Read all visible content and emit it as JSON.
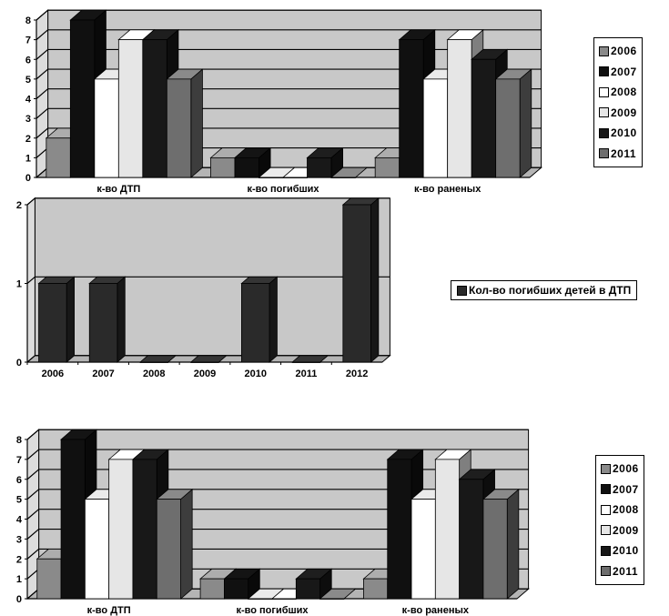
{
  "chart_data": [
    {
      "type": "bar",
      "categories": [
        "к-во ДТП",
        "к-во погибших",
        "к-во раненых"
      ],
      "series": [
        {
          "name": "2006",
          "values": [
            2,
            1,
            1
          ]
        },
        {
          "name": "2007",
          "values": [
            8,
            1,
            7
          ]
        },
        {
          "name": "2008",
          "values": [
            5,
            0,
            5
          ]
        },
        {
          "name": "2009",
          "values": [
            7,
            0,
            7
          ]
        },
        {
          "name": "2010",
          "values": [
            7,
            1,
            6
          ]
        },
        {
          "name": "2011",
          "values": [
            5,
            0,
            5
          ]
        }
      ],
      "ylim": [
        0,
        8
      ],
      "yticks": [
        "0",
        "1",
        "2",
        "3",
        "4",
        "5",
        "6",
        "7",
        "8"
      ],
      "grid": true,
      "legend": "right"
    },
    {
      "type": "bar",
      "categories": [
        "2006",
        "2007",
        "2008",
        "2009",
        "2010",
        "2011",
        "2012"
      ],
      "series": [
        {
          "name": "Кол-во погибших детей в ДТП",
          "values": [
            1,
            1,
            0,
            0,
            1,
            0,
            2
          ]
        }
      ],
      "ylim": [
        0,
        2
      ],
      "yticks": [
        "0",
        "1",
        "2"
      ],
      "grid": true,
      "legend": "right"
    },
    {
      "type": "bar",
      "categories": [
        "к-во ДТП",
        "к-во погибших",
        "к-во раненых"
      ],
      "series": [
        {
          "name": "2006",
          "values": [
            2,
            1,
            1
          ]
        },
        {
          "name": "2007",
          "values": [
            8,
            1,
            7
          ]
        },
        {
          "name": "2008",
          "values": [
            5,
            0,
            5
          ]
        },
        {
          "name": "2009",
          "values": [
            7,
            0,
            7
          ]
        },
        {
          "name": "2010",
          "values": [
            7,
            1,
            6
          ]
        },
        {
          "name": "2011",
          "values": [
            5,
            0,
            5
          ]
        }
      ],
      "ylim": [
        0,
        8
      ],
      "yticks": [
        "0",
        "1",
        "2",
        "3",
        "4",
        "5",
        "6",
        "7",
        "8"
      ],
      "grid": true,
      "legend": "right"
    }
  ],
  "colors": {
    "wall": "#c8c8c8",
    "floor": "#b4b4b4",
    "series_fill": [
      "#8a8a8a",
      "#101010",
      "#ffffff",
      "#e6e6e6",
      "#181818",
      "#6e6e6e"
    ],
    "kids_fill": "#2a2a2a"
  }
}
